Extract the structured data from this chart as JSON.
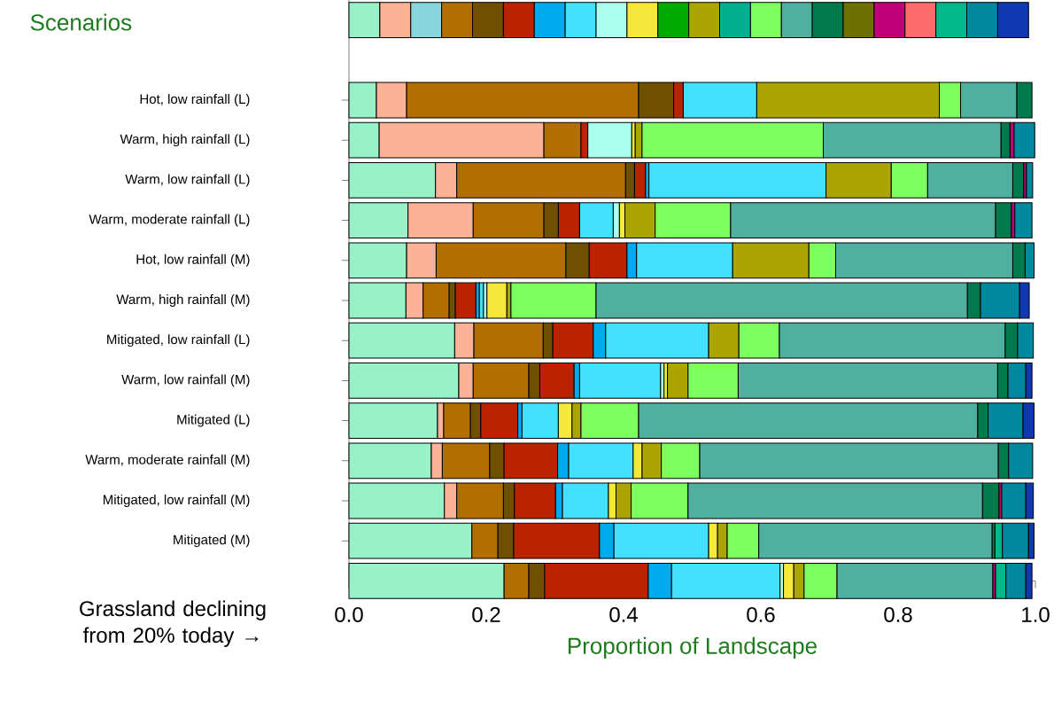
{
  "chart_data": {
    "type": "bar",
    "orientation": "horizontal",
    "stacked": true,
    "title": "Scenarios",
    "xlabel": "Proportion of Landscape",
    "categories": [
      null,
      null,
      "Hot, low rainfall (L)",
      "Warm, high rainfall (L)",
      "Warm, low rainfall (L)",
      "Warm, moderate rainfall (L)",
      "Hot, low rainfall (M)",
      "Warm, high rainfall (M)",
      "Mitigated, low rainfall (L)",
      "Warm, low rainfall (M)",
      "Mitigated (L)",
      "Warm, moderate rainfall (M)",
      "Mitigated, low rainfall (M)",
      "Mitigated (M)",
      null
    ],
    "series": [
      {
        "color": "#98f2c8",
        "values": [
          0.045,
          null,
          0.04,
          0.044,
          0.126,
          0.086,
          0.084,
          0.083,
          0.154,
          0.16,
          0.129,
          0.12,
          0.139,
          0.179,
          0.226
        ]
      },
      {
        "color": "#fdb195",
        "values": [
          0.045,
          null,
          0.044,
          0.24,
          0.031,
          0.095,
          0.043,
          0.025,
          0.028,
          0.021,
          0.009,
          0.016,
          0.018,
          null,
          null
        ]
      },
      {
        "color": "#87d6dc",
        "values": [
          0.045,
          null,
          null,
          null,
          null,
          null,
          null,
          null,
          null,
          null,
          null,
          null,
          null,
          null,
          null
        ]
      },
      {
        "color": "#b36e00",
        "values": [
          0.045,
          null,
          0.338,
          0.054,
          0.246,
          0.103,
          0.189,
          0.038,
          0.101,
          0.081,
          0.039,
          0.069,
          0.068,
          0.038,
          0.036
        ]
      },
      {
        "color": "#6e5000",
        "values": [
          0.045,
          null,
          0.051,
          null,
          0.013,
          0.021,
          0.034,
          0.009,
          0.014,
          0.016,
          0.015,
          0.021,
          0.016,
          0.023,
          0.023
        ]
      },
      {
        "color": "#bb2200",
        "values": [
          0.045,
          null,
          0.014,
          0.01,
          0.016,
          0.031,
          0.055,
          0.03,
          0.059,
          0.05,
          0.054,
          0.078,
          0.06,
          0.125,
          0.151
        ]
      },
      {
        "color": "#00aaee",
        "values": [
          0.045,
          null,
          null,
          null,
          0.005,
          null,
          0.014,
          0.005,
          0.018,
          0.008,
          0.006,
          0.016,
          0.01,
          0.021,
          0.034
        ]
      },
      {
        "color": "#44e0ff",
        "values": [
          0.045,
          null,
          0.107,
          null,
          0.258,
          0.049,
          0.14,
          0.006,
          0.15,
          0.118,
          0.053,
          0.094,
          0.067,
          0.138,
          0.158
        ]
      },
      {
        "color": "#aaffee",
        "values": [
          0.045,
          null,
          null,
          0.064,
          null,
          0.009,
          null,
          0.005,
          null,
          0.005,
          null,
          null,
          null,
          null,
          0.005
        ]
      },
      {
        "color": "#f5e83a",
        "values": [
          0.045,
          null,
          null,
          0.005,
          null,
          0.008,
          null,
          0.029,
          null,
          0.005,
          0.02,
          0.013,
          0.011,
          0.013,
          0.015
        ]
      },
      {
        "color": "#00aa00",
        "values": [
          0.045,
          null,
          null,
          null,
          null,
          null,
          null,
          null,
          null,
          null,
          null,
          null,
          null,
          null,
          null
        ]
      },
      {
        "color": "#aaa500",
        "values": [
          0.045,
          null,
          0.266,
          0.01,
          0.095,
          0.044,
          0.111,
          0.006,
          0.044,
          0.03,
          0.013,
          0.028,
          0.022,
          0.014,
          0.015
        ]
      },
      {
        "color": "#00b090",
        "values": [
          0.045,
          null,
          null,
          null,
          null,
          null,
          null,
          null,
          null,
          null,
          null,
          null,
          null,
          null,
          null
        ]
      },
      {
        "color": "#7dff5f",
        "values": [
          0.045,
          null,
          0.031,
          0.264,
          0.053,
          0.11,
          0.039,
          0.124,
          0.059,
          0.073,
          0.084,
          0.056,
          0.083,
          0.046,
          0.048
        ]
      },
      {
        "color": "#4fb0a0",
        "values": [
          0.045,
          null,
          0.082,
          0.259,
          0.124,
          0.386,
          0.258,
          0.541,
          0.329,
          0.378,
          0.494,
          0.435,
          0.429,
          0.34,
          0.227
        ]
      },
      {
        "color": "#007a4d",
        "values": [
          0.045,
          null,
          0.022,
          0.013,
          0.016,
          0.023,
          0.018,
          0.019,
          0.018,
          0.015,
          0.015,
          0.015,
          0.024,
          0.004,
          null
        ]
      },
      {
        "color": "#6e7000",
        "values": [
          0.045,
          null,
          null,
          null,
          null,
          null,
          null,
          null,
          null,
          null,
          null,
          null,
          null,
          null,
          null
        ]
      },
      {
        "color": "#c00078",
        "values": [
          0.045,
          null,
          null,
          0.006,
          0.004,
          0.005,
          null,
          null,
          null,
          null,
          null,
          null,
          0.004,
          null,
          0.004
        ]
      },
      {
        "color": "#ff6a6a",
        "values": [
          0.045,
          null,
          null,
          null,
          null,
          null,
          null,
          null,
          null,
          null,
          null,
          null,
          null,
          null,
          null
        ]
      },
      {
        "color": "#00b88a",
        "values": [
          0.045,
          null,
          null,
          null,
          null,
          null,
          null,
          null,
          null,
          null,
          null,
          null,
          null,
          0.011,
          0.015
        ]
      },
      {
        "color": "#00889f",
        "values": [
          0.045,
          null,
          null,
          0.03,
          0.009,
          0.025,
          0.013,
          0.057,
          0.023,
          0.026,
          0.051,
          0.035,
          0.035,
          0.038,
          0.029
        ]
      },
      {
        "color": "#1038b0",
        "values": [
          0.045,
          null,
          null,
          null,
          null,
          null,
          null,
          0.014,
          null,
          0.009,
          0.016,
          null,
          0.011,
          0.008,
          0.009
        ]
      }
    ],
    "xlim": [
      0,
      1
    ],
    "xticks": [
      {
        "value": 0,
        "label": "0.0"
      },
      {
        "value": 0.2,
        "label": "0.2"
      },
      {
        "value": 0.4,
        "label": "0.4"
      },
      {
        "value": 0.6,
        "label": "0.6"
      },
      {
        "value": 0.8,
        "label": "0.8"
      },
      {
        "value": 1,
        "label": "1.0"
      }
    ],
    "annotations": [
      "Grassland declining from 20% today →"
    ]
  }
}
